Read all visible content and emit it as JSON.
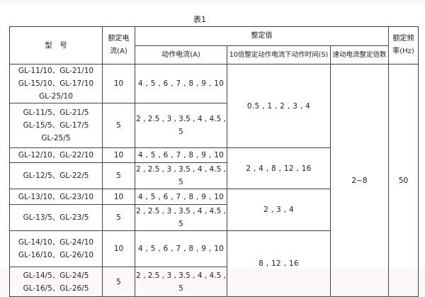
{
  "title": "表1",
  "headers": {
    "model": "型　号",
    "rated_current": "额定电\n流(A)",
    "setting_value": "整定值",
    "action_current": "动作电流(A)",
    "action_time": "10倍整定动作电流下动作时间(S)",
    "quick_multiple": "速动电流整定倍数",
    "rated_freq": "额定频\n率(Hz)"
  },
  "rows": [
    {
      "model": "GL-11/10、GL-21/10\nGL-15/10、GL-17/10\nGL-25/10",
      "rated": "10",
      "current": "4 , 5 , 6 , 7 , 8 , 9 , 10"
    },
    {
      "model": "GL-11/5、GL-21/5\nGL-15/5、GL-17/5\nGL-25/5",
      "rated": "5",
      "current": "2 , 2.5 , 3 , 3.5 , 4 , 4.5 , 5"
    },
    {
      "model": "GL-12/10、GL-22/10",
      "rated": "10",
      "current": "4 , 5 , 6 , 7 , 8 , 9 , 10"
    },
    {
      "model": "GL-12/5、GL-22/5",
      "rated": "5",
      "current": "2 , 2.5 , 3 , 3.5 , 4 , 4.5 , 5"
    },
    {
      "model": "GL-13/10、GL-23/10",
      "rated": "10",
      "current": "4 , 5 , 6 , 7 , 8 , 9 , 10"
    },
    {
      "model": "GL-13/5、GL-23/5",
      "rated": "5",
      "current": "2 , 2.5 , 3 , 3.5 , 4 , 4.5 , 5"
    },
    {
      "model": "GL-14/10、GL-24/10\nGL-16/10、GL-26/10",
      "rated": "10",
      "current": "4 , 5 , 6 , 7 , 8 , 9 , 10"
    },
    {
      "model": "GL-14/5、GL-24/5\nGL-16/5、GL-26/5",
      "rated": "5",
      "current": "2 , 2.5 , 3 , 3.5 , 4 , 4.5 , 5"
    }
  ],
  "action_times": [
    "0.5 , 1 , 2 , 3 , 4",
    "2 , 4 , 8 , 12 , 16",
    "2 , 3 , 4",
    "8 , 12 , 16"
  ],
  "quick_multiple": "2~8",
  "rated_freq": "50"
}
